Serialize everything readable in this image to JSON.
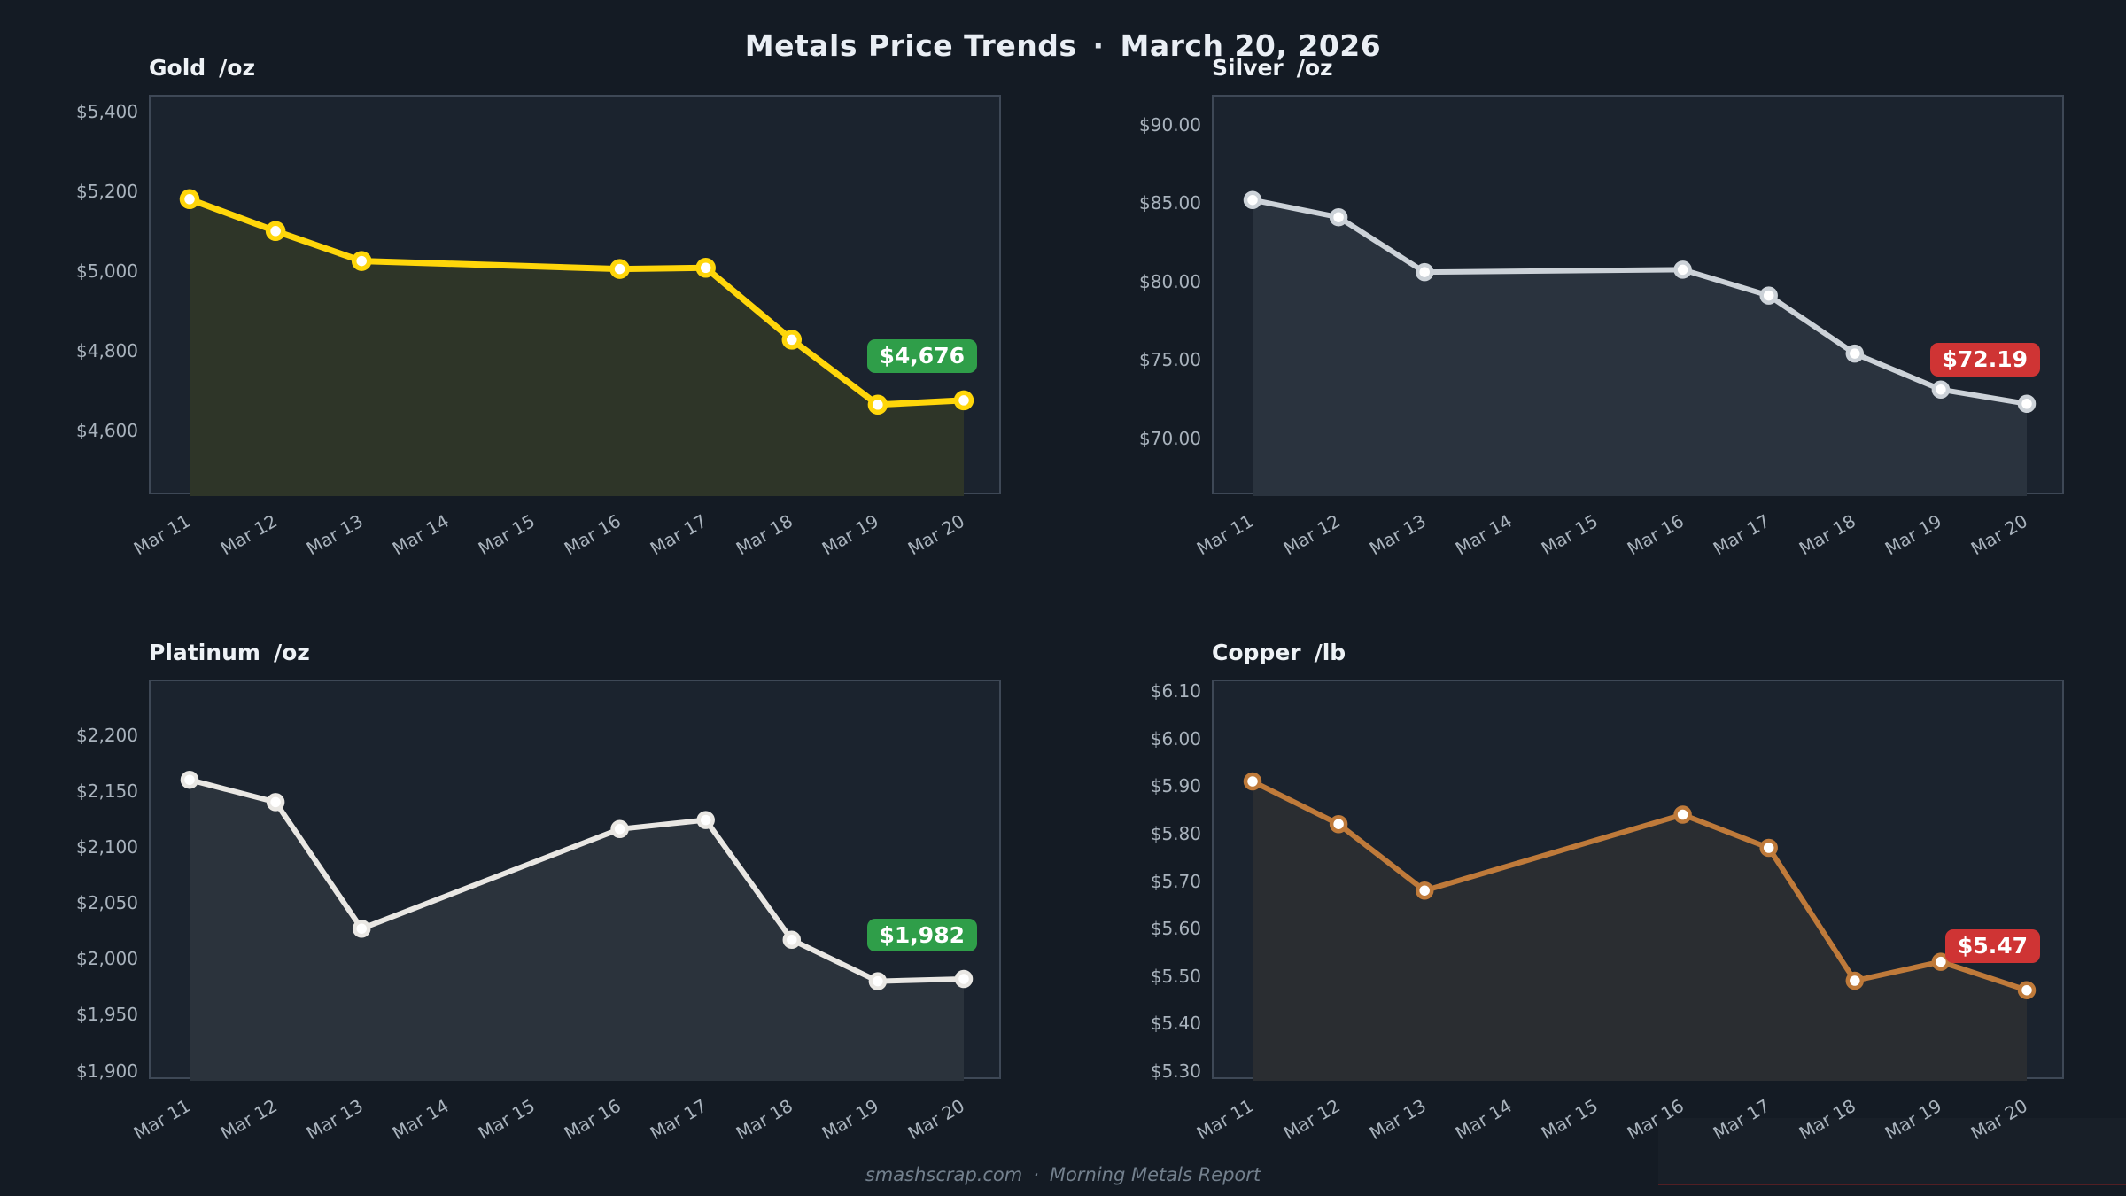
{
  "header": {
    "title": "Metals Price Trends",
    "separator": "·",
    "date": "March 20, 2026"
  },
  "footer": {
    "source": "smashscrap.com",
    "separator": "·",
    "report": "Morning Metals Report"
  },
  "theme": {
    "page_bg": "#141b24",
    "plot_bg": "#1b232e",
    "plot_border": "#3e4856",
    "tick_color": "#a9b3bd",
    "title_color": "#eef2f6",
    "marker_core": "#ffffff",
    "badge_text": "#ffffff",
    "badge_green": "#2f9e49",
    "badge_red": "#cf3434"
  },
  "chart_data": {
    "type": "line",
    "grid": false,
    "legend": "none",
    "x_labels": [
      "Mar 11",
      "Mar 12",
      "Mar 13",
      "Mar 14",
      "Mar 15",
      "Mar 16",
      "Mar 17",
      "Mar 18",
      "Mar 19",
      "Mar 20"
    ],
    "data_day_indices": [
      0,
      1,
      2,
      5,
      6,
      7,
      8,
      9
    ],
    "charts": [
      {
        "id": "gold",
        "title": "Gold",
        "unit": "/oz",
        "line_color": "#ffd60a",
        "fill_color": "#2e3528",
        "line_width": 7,
        "marker_radius": 8.5,
        "marker_ring": 5.5,
        "ylim": [
          4436,
          5437
        ],
        "yticks": [
          {
            "value": 4600,
            "label": "$4,600"
          },
          {
            "value": 4800,
            "label": "$4,800"
          },
          {
            "value": 5000,
            "label": "$5,000"
          },
          {
            "value": 5200,
            "label": "$5,200"
          },
          {
            "value": 5400,
            "label": "$5,400"
          }
        ],
        "values": [
          5180,
          5100,
          5025,
          5005,
          5008,
          4828,
          4665,
          4676
        ],
        "badge": {
          "label": "$4,676",
          "bg": "#2f9e49"
        }
      },
      {
        "id": "silver",
        "title": "Silver",
        "unit": "/oz",
        "line_color": "#ccd2d8",
        "fill_color": "#2a333e",
        "line_width": 6,
        "marker_radius": 8,
        "marker_ring": 4.5,
        "ylim": [
          66.3,
          91.8
        ],
        "yticks": [
          {
            "value": 70,
            "label": "$70.00"
          },
          {
            "value": 75,
            "label": "$75.00"
          },
          {
            "value": 80,
            "label": "$80.00"
          },
          {
            "value": 85,
            "label": "$85.00"
          },
          {
            "value": 90,
            "label": "$90.00"
          }
        ],
        "values": [
          85.2,
          84.1,
          80.6,
          80.75,
          79.1,
          75.4,
          73.1,
          72.19
        ],
        "badge": {
          "label": "$72.19",
          "bg": "#cf3434"
        }
      },
      {
        "id": "platinum",
        "title": "Platinum",
        "unit": "/oz",
        "line_color": "#e9e7e3",
        "fill_color": "#2b333c",
        "line_width": 6,
        "marker_radius": 8,
        "marker_ring": 4.5,
        "ylim": [
          1891,
          2248
        ],
        "yticks": [
          {
            "value": 1900,
            "label": "$1,900"
          },
          {
            "value": 1950,
            "label": "$1,950"
          },
          {
            "value": 2000,
            "label": "$2,000"
          },
          {
            "value": 2050,
            "label": "$2,050"
          },
          {
            "value": 2100,
            "label": "$2,100"
          },
          {
            "value": 2150,
            "label": "$2,150"
          },
          {
            "value": 2200,
            "label": "$2,200"
          }
        ],
        "values": [
          2160,
          2140,
          2027,
          2116,
          2124,
          2017,
          1980,
          1982
        ],
        "badge": {
          "label": "$1,982",
          "bg": "#2f9e49"
        }
      },
      {
        "id": "copper",
        "title": "Copper",
        "unit": "/lb",
        "line_color": "#bf7a3a",
        "fill_color": "#2a2d31",
        "line_width": 6,
        "marker_radius": 8,
        "marker_ring": 4.5,
        "ylim": [
          5.279,
          6.121
        ],
        "yticks": [
          {
            "value": 5.3,
            "label": "$5.30"
          },
          {
            "value": 5.4,
            "label": "$5.40"
          },
          {
            "value": 5.5,
            "label": "$5.50"
          },
          {
            "value": 5.6,
            "label": "$5.60"
          },
          {
            "value": 5.7,
            "label": "$5.70"
          },
          {
            "value": 5.8,
            "label": "$5.80"
          },
          {
            "value": 5.9,
            "label": "$5.90"
          },
          {
            "value": 6.0,
            "label": "$6.00"
          },
          {
            "value": 6.1,
            "label": "$6.10"
          }
        ],
        "values": [
          5.91,
          5.82,
          5.68,
          5.84,
          5.77,
          5.49,
          5.53,
          5.47
        ],
        "badge": {
          "label": "$5.47",
          "bg": "#cf3434"
        }
      }
    ]
  }
}
